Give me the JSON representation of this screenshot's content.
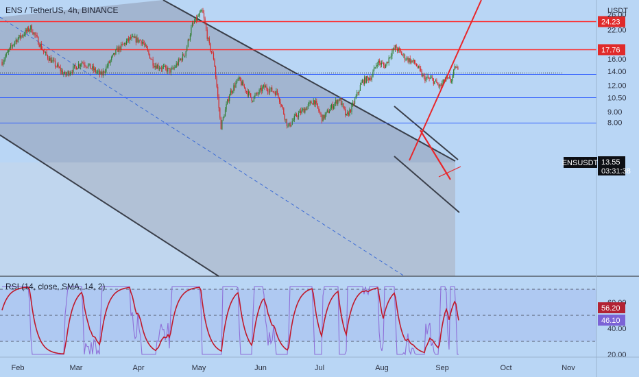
{
  "header": {
    "title": "ENS / TetherUS, 4h, BINANCE"
  },
  "price_axis": {
    "currency": "USDT"
  },
  "rsi": {
    "label": "RSI (14, close, SMA, 14, 2)",
    "rsi_value": "56.20",
    "sma_value": "46.10"
  },
  "last_price": {
    "symbol": "ENSUSDT",
    "value": "13.55",
    "countdown": "03:31:38"
  },
  "colors": {
    "background": "#b9d6f5",
    "up": "#2f7d2f",
    "down": "#d62828",
    "hline_red": "#ff2a2a",
    "hline_blue": "#2e5cff",
    "rsi_line": "#8e6fd8",
    "rsi_ma": "#c0182a"
  },
  "chart_data": [
    {
      "type": "candlestick",
      "symbol": "ENSUSDT",
      "timeframe": "4h",
      "y_scale": "log",
      "ylim": [
        7.2,
        30.0
      ],
      "y_ticks": [
        "26.00",
        "22.00",
        "16.00",
        "14.00",
        "12.00",
        "10.50",
        "9.00",
        "8.00"
      ],
      "x_ticks": [
        "Feb",
        "Mar",
        "Apr",
        "May",
        "Jun",
        "Jul",
        "Aug",
        "Sep",
        "Oct",
        "Nov"
      ],
      "approx_path": [
        {
          "t": "Feb",
          "price": 15.5
        },
        {
          "t": "Feb mid",
          "price": 22.5
        },
        {
          "t": "Mar",
          "price": 13.5
        },
        {
          "t": "Apr",
          "price": 19.0
        },
        {
          "t": "Apr mid",
          "price": 14.0
        },
        {
          "t": "May",
          "price": 27.0
        },
        {
          "t": "May mid",
          "price": 7.6
        },
        {
          "t": "Jun",
          "price": 12.5
        },
        {
          "t": "Jun mid",
          "price": 10.0
        },
        {
          "t": "Jul",
          "price": 8.0
        },
        {
          "t": "Jul mid",
          "price": 10.5
        },
        {
          "t": "Aug",
          "price": 13.0
        },
        {
          "t": "Aug early",
          "price": 18.2
        },
        {
          "t": "Aug mid",
          "price": 14.0
        },
        {
          "t": "Sep",
          "price": 11.8
        },
        {
          "t": "Sep now",
          "price": 13.55
        }
      ],
      "horizontal_levels": [
        {
          "price": 24.23,
          "label": "24.23",
          "color": "red"
        },
        {
          "price": 17.76,
          "label": "17.76",
          "color": "red"
        },
        {
          "price": 13.55,
          "color": "blue"
        },
        {
          "price": 10.5,
          "color": "blue"
        },
        {
          "price": 8.0,
          "color": "blue"
        }
      ],
      "annotations": [
        "descending channel",
        "falling wedge",
        "projected breakout line"
      ]
    },
    {
      "type": "line",
      "name": "RSI",
      "ylim": [
        18,
        80
      ],
      "y_ticks": [
        "60.00",
        "40.00",
        "20.00"
      ],
      "reference_levels": [
        70,
        50,
        30
      ],
      "latest": {
        "rsi": 56.2,
        "ma": 46.1
      }
    }
  ]
}
